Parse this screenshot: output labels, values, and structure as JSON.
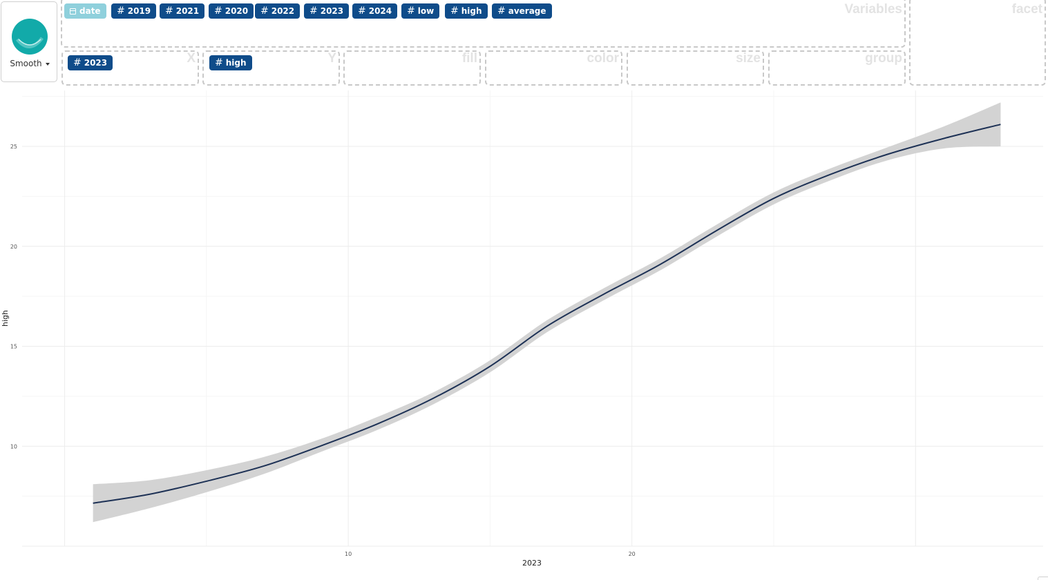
{
  "geom": {
    "label": "Smooth",
    "icon": "smooth-geom-icon"
  },
  "variables": {
    "label": "Variables",
    "pills": [
      {
        "name": "date",
        "type": "date",
        "icon": "calendar-icon",
        "style": "light"
      },
      {
        "name": "2019",
        "type": "numeric",
        "icon": "hash-icon"
      },
      {
        "name": "2021",
        "type": "numeric",
        "icon": "hash-icon"
      },
      {
        "name": "2020",
        "type": "numeric",
        "icon": "hash-icon"
      },
      {
        "name": "2022",
        "type": "numeric",
        "icon": "hash-icon"
      },
      {
        "name": "2023",
        "type": "numeric",
        "icon": "hash-icon"
      },
      {
        "name": "2024",
        "type": "numeric",
        "icon": "hash-icon"
      },
      {
        "name": "low",
        "type": "numeric",
        "icon": "hash-icon"
      },
      {
        "name": "high",
        "type": "numeric",
        "icon": "hash-icon"
      },
      {
        "name": "average",
        "type": "numeric",
        "icon": "hash-icon"
      }
    ]
  },
  "facet": {
    "label": "facet"
  },
  "aesthetics": {
    "x": {
      "label": "X",
      "value": "2023"
    },
    "y": {
      "label": "Y",
      "value": "high"
    },
    "fill": {
      "label": "fill"
    },
    "color": {
      "label": "color"
    },
    "size": {
      "label": "size"
    },
    "group": {
      "label": "group"
    }
  },
  "hash_symbol": "#",
  "chart_data": {
    "type": "line",
    "subtype": "smooth-with-confidence-band",
    "xlabel": "2023",
    "ylabel": "high",
    "xlim": [
      -1.5,
      34.5
    ],
    "ylim": [
      5.0,
      27.8
    ],
    "xticks": [
      10,
      20
    ],
    "yticks": [
      10,
      15,
      20,
      25
    ],
    "grid": true,
    "line_color": "#1d3155",
    "band_color": "#d3d3d3",
    "x": [
      1,
      3,
      5,
      7,
      9,
      11,
      13,
      15,
      17,
      19,
      21,
      23,
      25,
      27,
      29,
      31,
      33
    ],
    "y": [
      7.15,
      7.6,
      8.25,
      9.0,
      10.0,
      11.1,
      12.4,
      14.0,
      16.0,
      17.6,
      19.1,
      20.8,
      22.4,
      23.6,
      24.6,
      25.4,
      26.1
    ],
    "y_lower": [
      6.2,
      6.9,
      7.7,
      8.6,
      9.7,
      10.8,
      12.1,
      13.7,
      15.7,
      17.3,
      18.8,
      20.5,
      22.1,
      23.3,
      24.3,
      24.9,
      25.0
    ],
    "y_upper": [
      8.1,
      8.3,
      8.8,
      9.45,
      10.35,
      11.45,
      12.7,
      14.3,
      16.3,
      17.9,
      19.4,
      21.1,
      22.7,
      23.9,
      24.95,
      26.0,
      27.2
    ]
  }
}
